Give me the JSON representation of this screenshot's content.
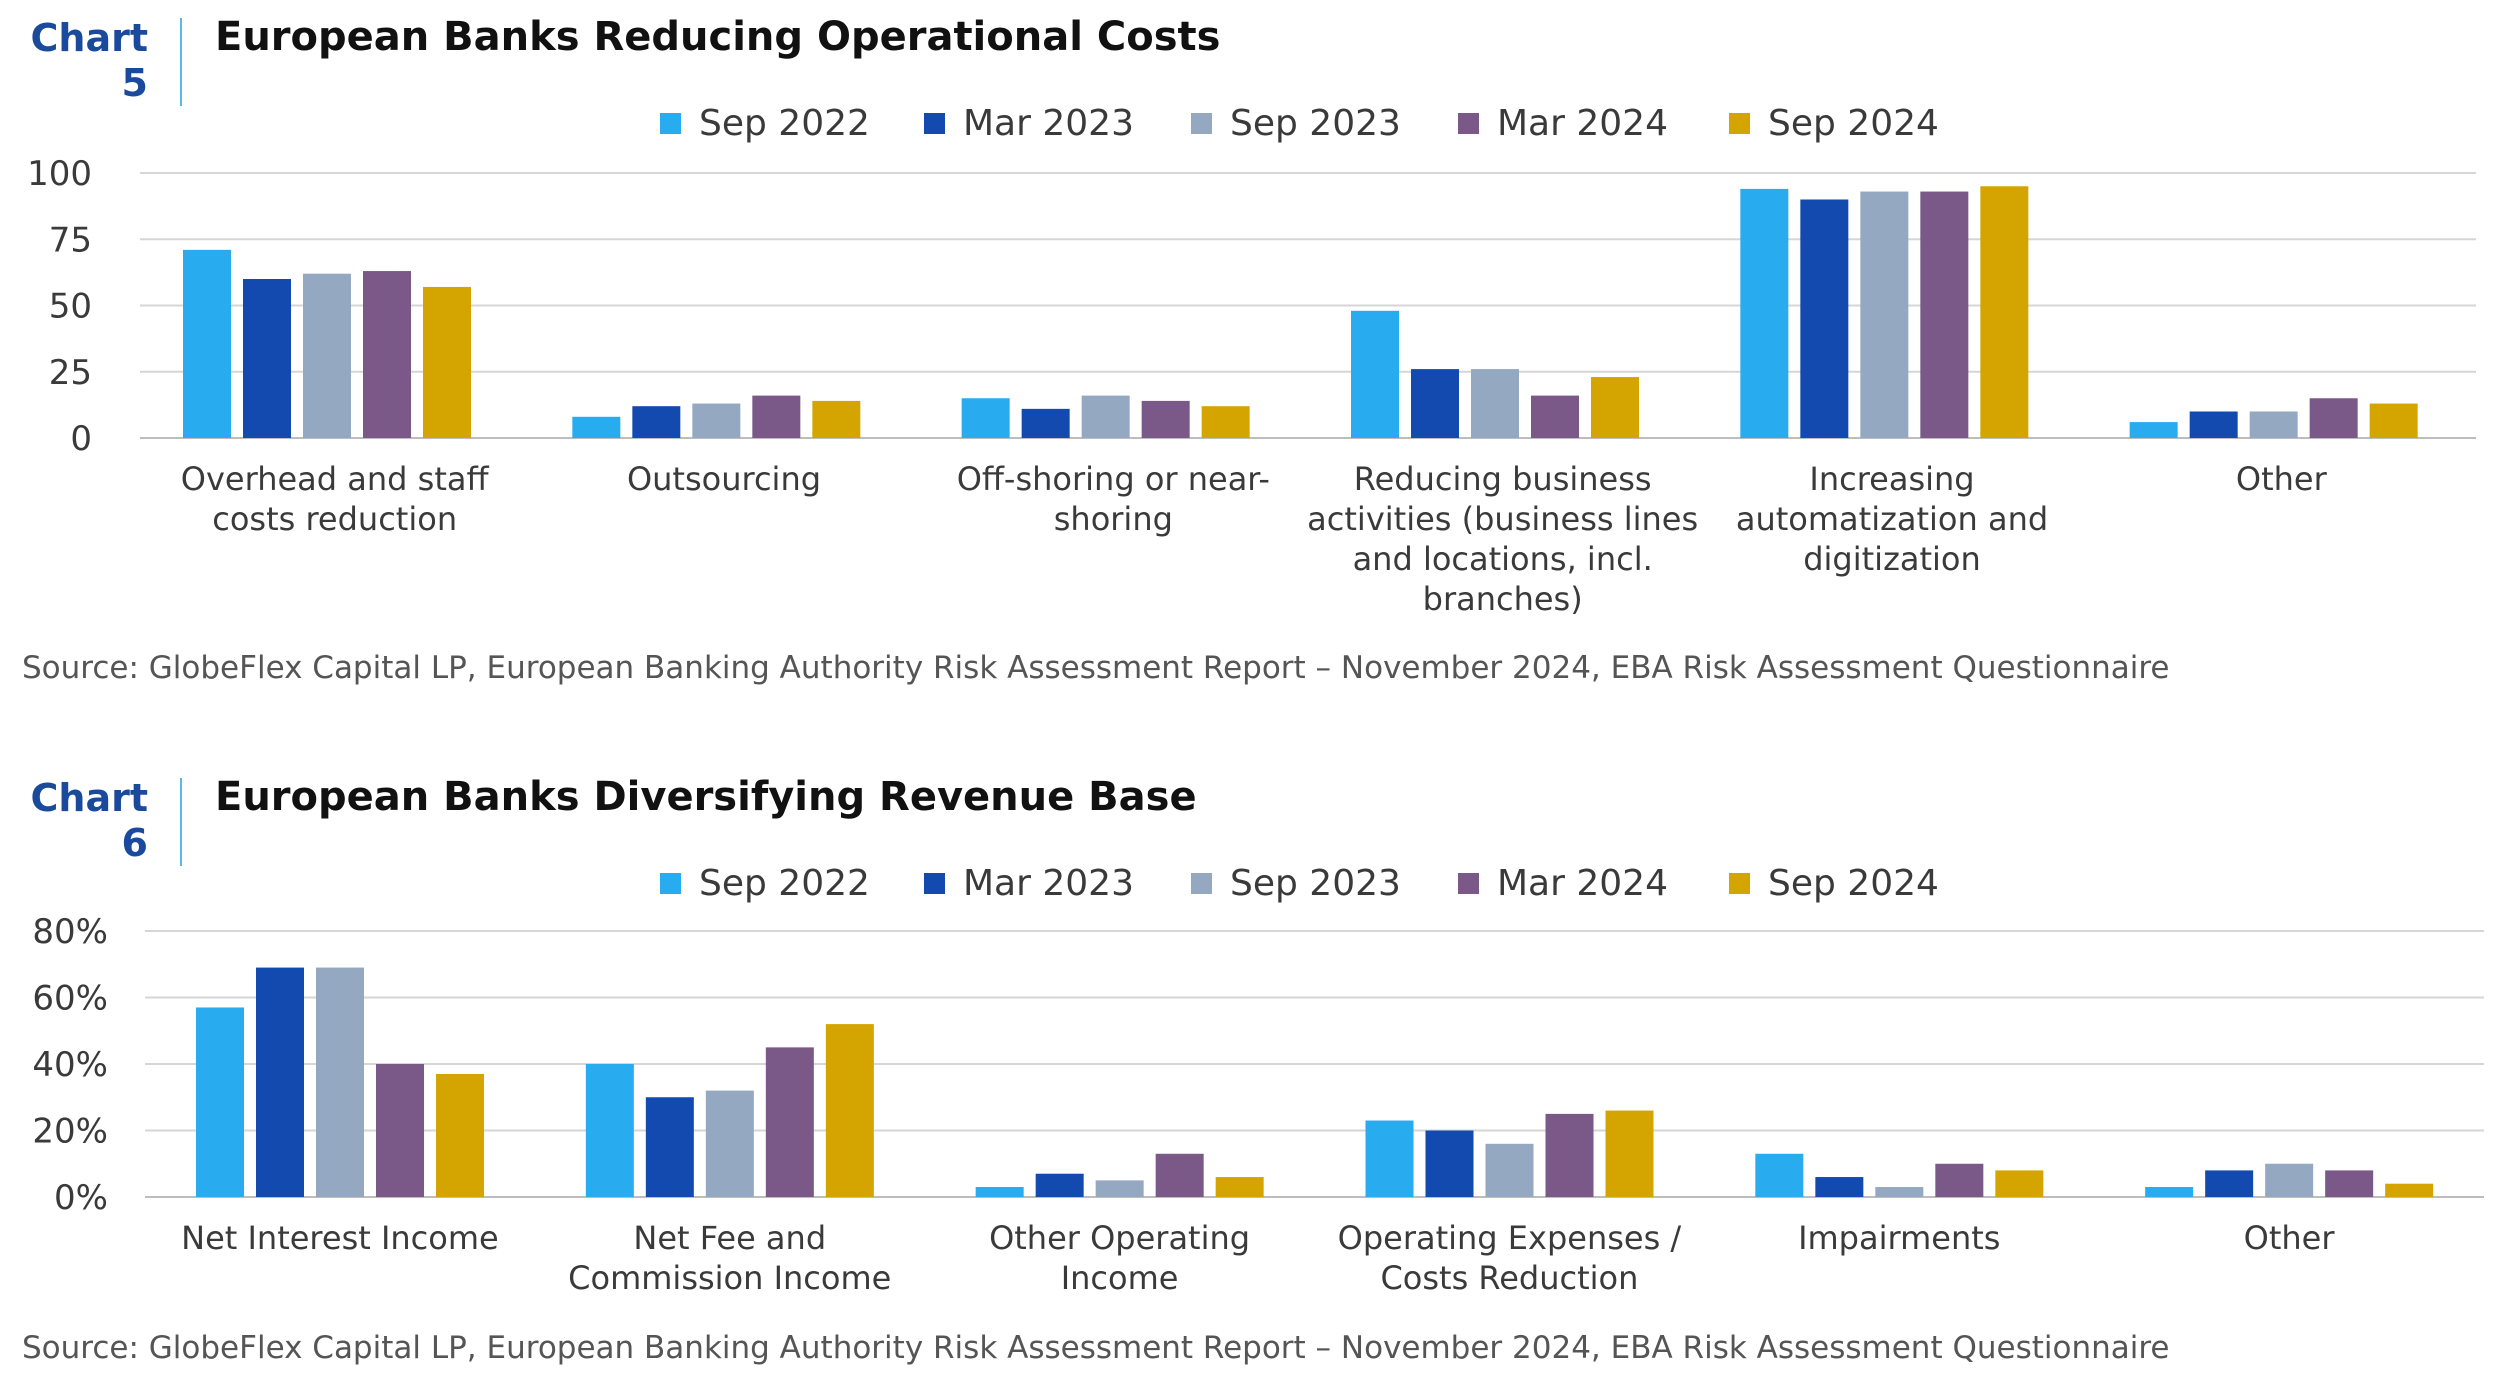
{
  "chart_data": [
    {
      "type": "bar",
      "chart_label": "Chart 5",
      "chart_label_lines": [
        "Chart",
        "5"
      ],
      "title": "European Banks Reducing Operational Costs",
      "categories": [
        [
          "Overhead and staff",
          "costs reduction"
        ],
        [
          "Outsourcing"
        ],
        [
          "Off-shoring or near-",
          "shoring"
        ],
        [
          "Reducing business",
          "activities (business lines",
          "and locations, incl.",
          "branches)"
        ],
        [
          "Increasing",
          "automatization and",
          "digitization"
        ],
        [
          "Other"
        ]
      ],
      "series": [
        {
          "name": "Sep 2022",
          "color": "#29abef",
          "values": [
            71,
            8,
            15,
            48,
            94,
            6
          ]
        },
        {
          "name": "Mar 2023",
          "color": "#124aaf",
          "values": [
            60,
            12,
            11,
            26,
            90,
            10
          ]
        },
        {
          "name": "Sep 2023",
          "color": "#94a9c1",
          "values": [
            62,
            13,
            16,
            26,
            93,
            10
          ]
        },
        {
          "name": "Mar 2024",
          "color": "#7a5887",
          "values": [
            63,
            16,
            14,
            16,
            93,
            15
          ]
        },
        {
          "name": "Sep 2024",
          "color": "#d4a500",
          "values": [
            57,
            14,
            12,
            23,
            95,
            13
          ]
        }
      ],
      "yticks": [
        "100",
        "75",
        "50",
        "25",
        "0"
      ],
      "ylim": [
        0,
        100
      ],
      "grid": true,
      "legend": "top-center",
      "source": "Source: GlobeFlex Capital LP, European Banking Authority Risk Assessment Report – November 2024, EBA Risk Assessment Questionnaire"
    },
    {
      "type": "bar",
      "chart_label": "Chart 6",
      "chart_label_lines": [
        "Chart",
        "6"
      ],
      "title": "European Banks Diversifying Revenue Base",
      "categories": [
        [
          "Net Interest Income"
        ],
        [
          "Net Fee and",
          "Commission Income"
        ],
        [
          "Other Operating",
          "Income"
        ],
        [
          "Operating Expenses /",
          "Costs Reduction"
        ],
        [
          "Impairments"
        ],
        [
          "Other"
        ]
      ],
      "series": [
        {
          "name": "Sep 2022",
          "color": "#29abef",
          "values": [
            57,
            40,
            3,
            23,
            13,
            3
          ]
        },
        {
          "name": "Mar 2023",
          "color": "#124aaf",
          "values": [
            69,
            30,
            7,
            20,
            6,
            8
          ]
        },
        {
          "name": "Sep 2023",
          "color": "#94a9c1",
          "values": [
            69,
            32,
            5,
            16,
            3,
            10
          ]
        },
        {
          "name": "Mar 2024",
          "color": "#7a5887",
          "values": [
            40,
            45,
            13,
            25,
            10,
            8
          ]
        },
        {
          "name": "Sep 2024",
          "color": "#d4a500",
          "values": [
            37,
            52,
            6,
            26,
            8,
            4
          ]
        }
      ],
      "yticks": [
        "80%",
        "60%",
        "40%",
        "20%",
        "0%"
      ],
      "ylim": [
        0,
        80
      ],
      "grid": true,
      "legend": "top-center",
      "source": "Source: GlobeFlex Capital LP, European Banking Authority Risk Assessment Report – November 2024, EBA Risk Assessment Questionnaire"
    }
  ]
}
